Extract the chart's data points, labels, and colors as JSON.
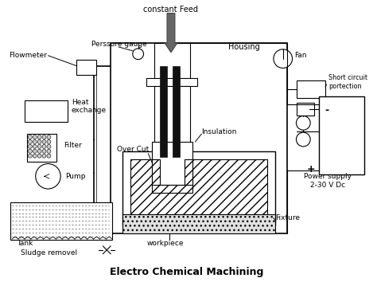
{
  "title": "Electro Chemical Machining",
  "bg_color": "#ffffff",
  "labels": {
    "constant_feed": "constant Feed",
    "flowmeter": "Flowmeter",
    "pressure_gauge": "Perssure gauge",
    "housing": "Housing",
    "fan": "Fan",
    "short_circuit": "Short circuit\nportection",
    "heat_exchange": "Heat\nexchange",
    "over_cut": "Over Cut",
    "insulation": "Insulation",
    "filter": "Filter",
    "pump": "Pump",
    "tank": "Tank",
    "sludge": "Sludge removel",
    "workpiece": "workpiece",
    "fixture": "Fixture",
    "power_supply": "Power supply\n2-30 V Dc",
    "plus": "+",
    "minus": "-"
  }
}
